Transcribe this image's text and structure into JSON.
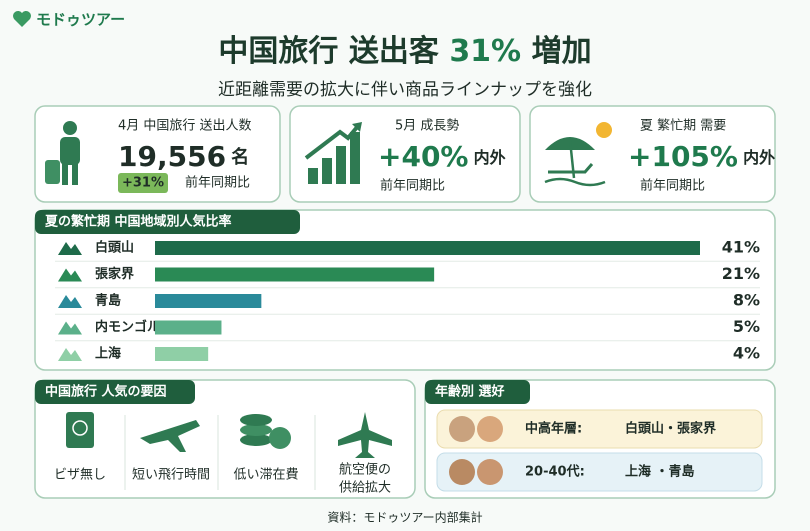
{
  "logo": "モドゥツアー",
  "title": {
    "prefix": "中国旅行 送出客",
    "highlight": "31%",
    "suffix": "増加"
  },
  "subtitle": "近距離需要の拡大に伴い商品ラインナップを強化",
  "stats": [
    {
      "label": "4月 中国旅行 送出人数",
      "value": "19,556",
      "unit": "名",
      "badge": "+31%",
      "note": "前年同期比"
    },
    {
      "label": "5月 成長勢",
      "value": "+40%",
      "unit": "内外",
      "note": "前年同期比"
    },
    {
      "label": "夏 繁忙期 需要",
      "value": "+105%",
      "unit": "内外",
      "note": "前年同期比"
    }
  ],
  "chart_data": {
    "type": "bar",
    "orientation": "horizontal",
    "title": "夏の繁忙期 中国地域別人気比率",
    "categories": [
      "白頭山",
      "張家界",
      "青島",
      "内モンゴル",
      "上海"
    ],
    "values": [
      41,
      21,
      8,
      5,
      4
    ],
    "value_labels": [
      "41%",
      "21%",
      "8%",
      "5%",
      "4%"
    ],
    "colors": [
      "#1e6b4a",
      "#2a8a55",
      "#2a8a9a",
      "#5bb08a",
      "#8fcfa6"
    ]
  },
  "factors": {
    "title": "中国旅行 人気の要因",
    "items": [
      [
        "ビザ無し"
      ],
      [
        "短い飛行時間"
      ],
      [
        "低い滞在費"
      ],
      [
        "航空便の",
        "供給拡大"
      ]
    ]
  },
  "age_preference": {
    "title": "年齢別 選好",
    "rows": [
      {
        "group": "中高年層:",
        "places": "白頭山・張家界"
      },
      {
        "group": "20-40代:",
        "places": "上海 ・青島"
      }
    ]
  },
  "source": "資料：モドゥツアー内部集計"
}
